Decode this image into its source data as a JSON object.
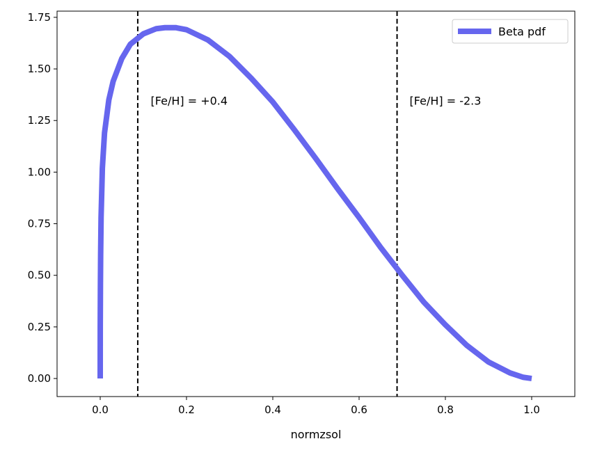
{
  "chart_data": {
    "type": "line",
    "title": "",
    "xlabel": "normzsol",
    "ylabel": "",
    "xlim": [
      -0.1,
      1.1
    ],
    "ylim": [
      -0.0875,
      1.78
    ],
    "x_ticks": [
      0.0,
      0.2,
      0.4,
      0.6,
      0.8,
      1.0
    ],
    "x_tick_labels": [
      "0.0",
      "0.2",
      "0.4",
      "0.6",
      "0.8",
      "1.0"
    ],
    "y_ticks": [
      0.0,
      0.25,
      0.5,
      0.75,
      1.0,
      1.25,
      1.5,
      1.75
    ],
    "y_tick_labels": [
      "0.00",
      "0.25",
      "0.50",
      "0.75",
      "1.00",
      "1.25",
      "1.50",
      "1.75"
    ],
    "grid": false,
    "legend_position": "top-right",
    "series": [
      {
        "name": "Beta pdf",
        "color": "#6666ee",
        "x": [
          0.0,
          0.0001,
          0.0005,
          0.001,
          0.002,
          0.005,
          0.01,
          0.02,
          0.03,
          0.05,
          0.07,
          0.1,
          0.13,
          0.15,
          0.175,
          0.2,
          0.25,
          0.3,
          0.35,
          0.4,
          0.45,
          0.5,
          0.55,
          0.6,
          0.65,
          0.7,
          0.75,
          0.8,
          0.85,
          0.9,
          0.95,
          0.98,
          1.0
        ],
        "y": [
          0.0,
          0.25,
          0.45,
          0.6,
          0.78,
          1.02,
          1.19,
          1.35,
          1.44,
          1.55,
          1.62,
          1.67,
          1.695,
          1.7,
          1.7,
          1.69,
          1.64,
          1.56,
          1.455,
          1.34,
          1.205,
          1.065,
          0.92,
          0.78,
          0.635,
          0.5,
          0.37,
          0.26,
          0.16,
          0.08,
          0.027,
          0.006,
          0.0
        ]
      }
    ],
    "vlines": [
      {
        "x": 0.087,
        "style": "dashed",
        "color": "#000000"
      },
      {
        "x": 0.688,
        "style": "dashed",
        "color": "#000000"
      }
    ],
    "annotations": [
      {
        "text": "[Fe/H] = +0.4",
        "x": 0.117,
        "y": 1.3
      },
      {
        "text": "[Fe/H] = -2.3",
        "x": 0.717,
        "y": 1.3
      }
    ]
  }
}
